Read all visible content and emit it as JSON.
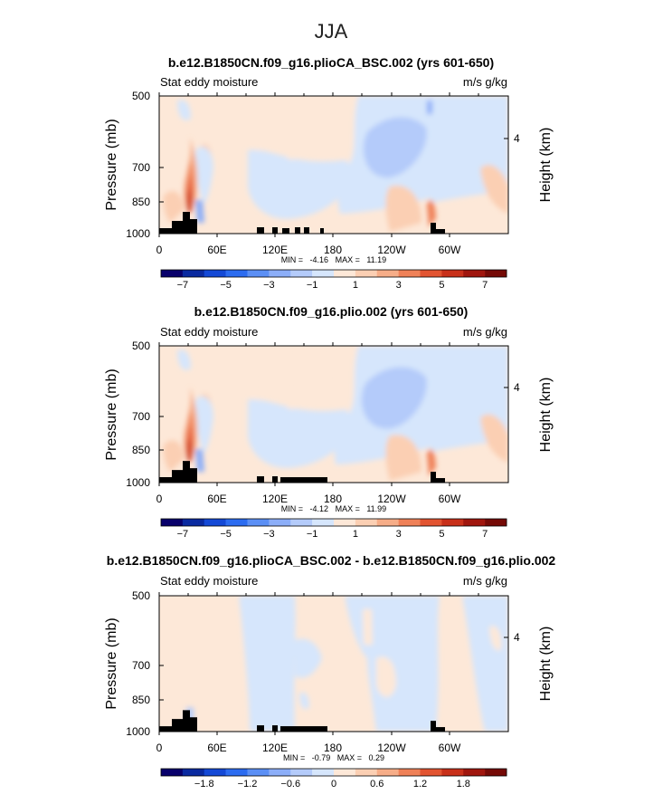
{
  "figure": {
    "season_title": "JJA"
  },
  "chart_data": [
    {
      "type": "heatmap",
      "title": "b.e12.B1850CN.f09_g16.plioCA_BSC.002 (yrs 601-650)",
      "left_label": "Stat eddy moisture",
      "right_label": "m/s g/kg",
      "ylabel": "Pressure (mb)",
      "ylabel_right": "Height (km)",
      "y_ticks": [
        "500",
        "700",
        "850",
        "1000"
      ],
      "y_ticks_right": [
        "4"
      ],
      "x_ticks": [
        "0",
        "60E",
        "120E",
        "180",
        "120W",
        "60W"
      ],
      "stats": "MIN =   -4.16   MAX =   11.19",
      "colorbar_ticks": [
        "-7",
        "-5",
        "-3",
        "-1",
        "1",
        "3",
        "5",
        "7"
      ],
      "colorbar_levels": 16,
      "xlim": [
        0,
        360
      ],
      "ylim": [
        1000,
        500
      ]
    },
    {
      "type": "heatmap",
      "title": "b.e12.B1850CN.f09_g16.plio.002 (yrs 601-650)",
      "left_label": "Stat eddy moisture",
      "right_label": "m/s g/kg",
      "ylabel": "Pressure (mb)",
      "ylabel_right": "Height (km)",
      "y_ticks": [
        "500",
        "700",
        "850",
        "1000"
      ],
      "y_ticks_right": [
        "4"
      ],
      "x_ticks": [
        "0",
        "60E",
        "120E",
        "180",
        "120W",
        "60W"
      ],
      "stats": "MIN =   -4.12   MAX =   11.99",
      "colorbar_ticks": [
        "-7",
        "-5",
        "-3",
        "-1",
        "1",
        "3",
        "5",
        "7"
      ],
      "colorbar_levels": 16,
      "xlim": [
        0,
        360
      ],
      "ylim": [
        1000,
        500
      ]
    },
    {
      "type": "heatmap",
      "title": "b.e12.B1850CN.f09_g16.plioCA_BSC.002 - b.e12.B1850CN.f09_g16.plio.002",
      "left_label": "Stat eddy moisture",
      "right_label": "m/s g/kg",
      "ylabel": "Pressure (mb)",
      "ylabel_right": "Height (km)",
      "y_ticks": [
        "500",
        "700",
        "850",
        "1000"
      ],
      "y_ticks_right": [
        "4"
      ],
      "x_ticks": [
        "0",
        "60E",
        "120E",
        "180",
        "120W",
        "60W"
      ],
      "stats": "MIN =   -0.79   MAX =   0.29",
      "colorbar_ticks": [
        "-1.8",
        "-1.2",
        "-0.6",
        "0",
        "0.6",
        "1.2",
        "1.8"
      ],
      "colorbar_levels": 16,
      "xlim": [
        0,
        360
      ],
      "ylim": [
        1000,
        500
      ]
    }
  ],
  "colors": {
    "scale": [
      "#08006b",
      "#0a2aa0",
      "#1449d6",
      "#2c6cf0",
      "#5b8ff5",
      "#8caef8",
      "#b4cbfa",
      "#d6e6fc",
      "#fde8d8",
      "#fbcfb3",
      "#f6ad88",
      "#ef8158",
      "#e25431",
      "#c8301a",
      "#a0160e",
      "#750a06"
    ],
    "topography": "#000000"
  }
}
